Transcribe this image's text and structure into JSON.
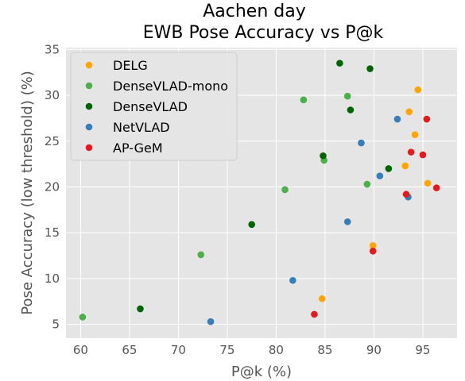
{
  "chart_data": {
    "type": "scatter",
    "title_line1": "Aachen day",
    "title_line2": "EWB Pose Accuracy vs P@k",
    "xlabel": "P@k (%)",
    "ylabel": "Pose Accuracy (low threshold) (%)",
    "xlim": [
      58.5,
      98.5
    ],
    "ylim": [
      3.5,
      35.2
    ],
    "xticks": [
      60,
      65,
      70,
      75,
      80,
      85,
      90,
      95
    ],
    "yticks": [
      5,
      10,
      15,
      20,
      25,
      30,
      35
    ],
    "grid": true,
    "legend_position": "upper-left",
    "series": [
      {
        "name": "DELG",
        "color": "#ffa500",
        "points": [
          [
            84.7,
            7.8
          ],
          [
            89.9,
            13.6
          ],
          [
            93.2,
            22.3
          ],
          [
            93.6,
            28.2
          ],
          [
            94.2,
            25.7
          ],
          [
            94.5,
            30.6
          ],
          [
            95.5,
            20.4
          ]
        ]
      },
      {
        "name": "DenseVLAD-mono",
        "color": "#4daf4a",
        "points": [
          [
            60.2,
            5.8
          ],
          [
            72.3,
            12.6
          ],
          [
            80.9,
            19.7
          ],
          [
            82.8,
            29.5
          ],
          [
            84.9,
            22.9
          ],
          [
            87.3,
            29.9
          ],
          [
            89.3,
            20.3
          ]
        ]
      },
      {
        "name": "DenseVLAD",
        "color": "#006400",
        "points": [
          [
            66.1,
            6.7
          ],
          [
            77.5,
            15.9
          ],
          [
            84.8,
            23.4
          ],
          [
            86.5,
            33.5
          ],
          [
            87.6,
            28.4
          ],
          [
            89.6,
            32.9
          ],
          [
            91.5,
            22.0
          ]
        ]
      },
      {
        "name": "NetVLAD",
        "color": "#377eb8",
        "points": [
          [
            73.3,
            5.3
          ],
          [
            81.7,
            9.8
          ],
          [
            87.3,
            16.2
          ],
          [
            88.7,
            24.8
          ],
          [
            90.6,
            21.2
          ],
          [
            92.4,
            27.4
          ],
          [
            93.5,
            18.9
          ]
        ]
      },
      {
        "name": "AP-GeM",
        "color": "#e41a1c",
        "points": [
          [
            83.9,
            6.1
          ],
          [
            89.9,
            13.0
          ],
          [
            93.3,
            19.2
          ],
          [
            93.8,
            23.8
          ],
          [
            95.0,
            23.5
          ],
          [
            95.4,
            27.4
          ],
          [
            96.4,
            19.9
          ]
        ]
      }
    ]
  }
}
